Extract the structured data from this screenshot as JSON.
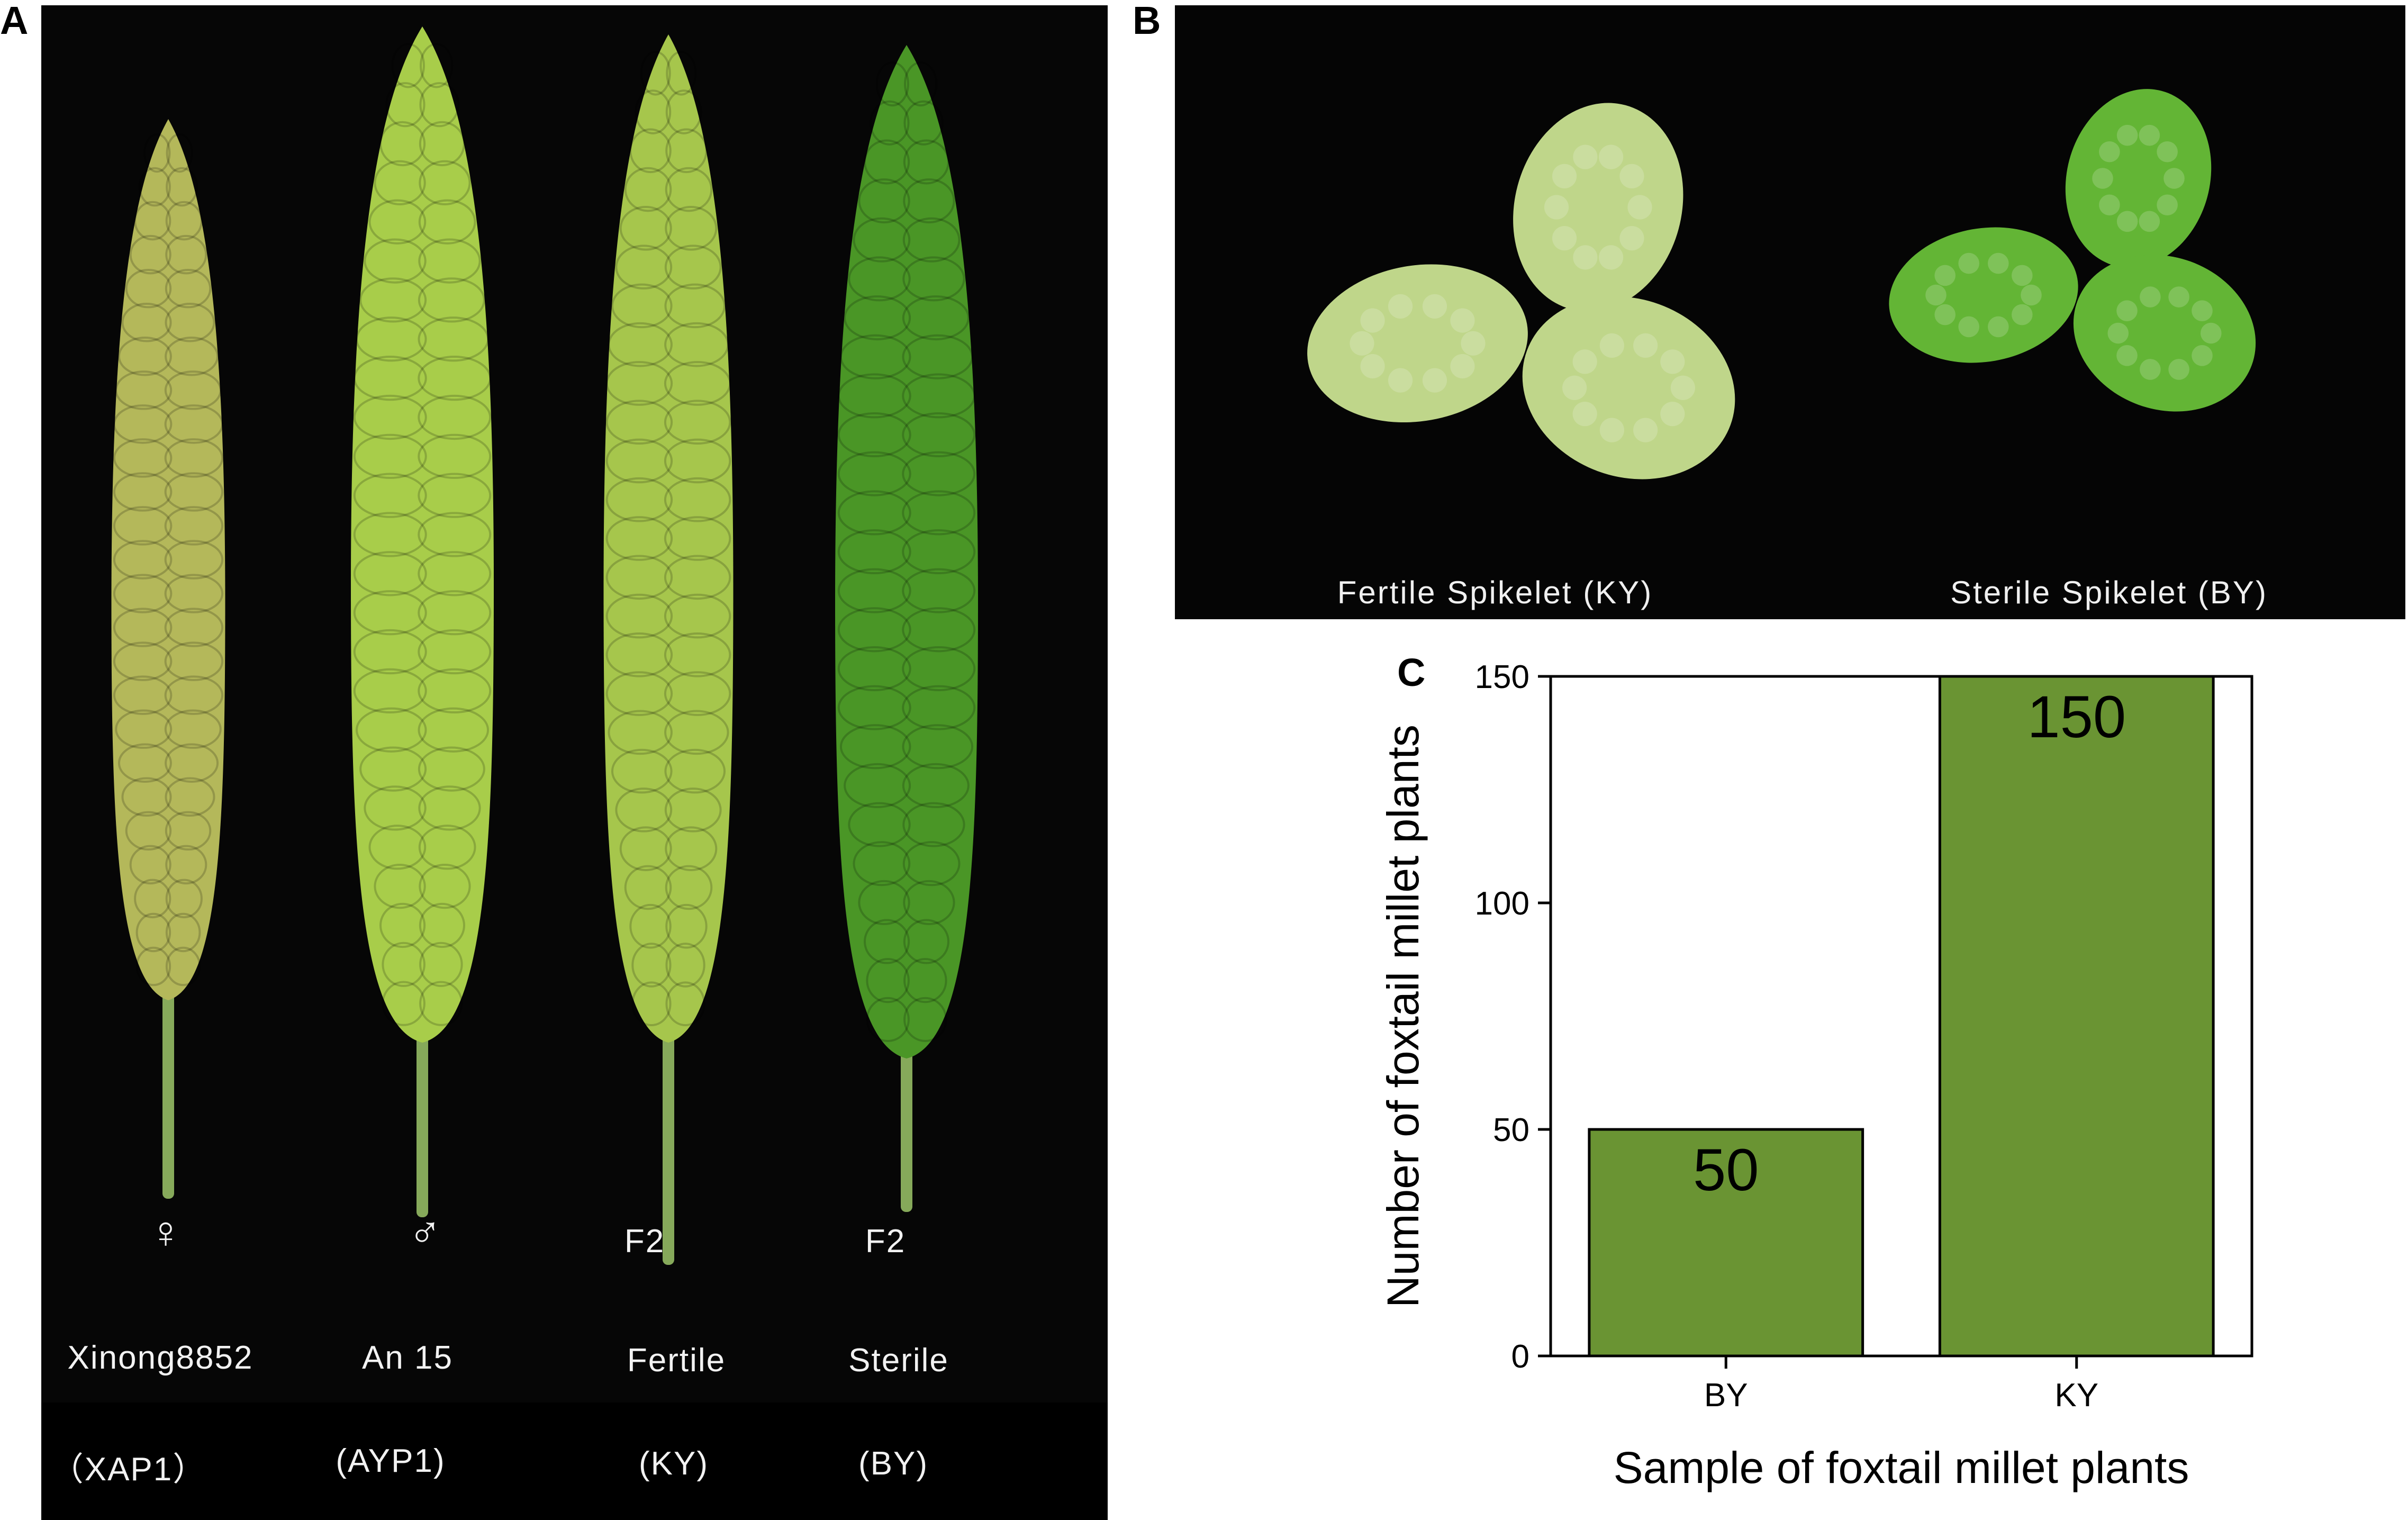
{
  "panel_labels": {
    "a": "A",
    "b": "B",
    "c": "C"
  },
  "panel_a": {
    "specimens": [
      {
        "symbol": "♀",
        "name": "Xinong8852",
        "code": "（XAP1）",
        "color": "#b4b85a"
      },
      {
        "symbol": "♂",
        "name": "An 15",
        "code": "(AYP1)",
        "color": "#a8cd4a"
      },
      {
        "symbol": "F2",
        "name": "Fertile",
        "code": "(KY)",
        "color": "#a6c64c"
      },
      {
        "symbol": "F2",
        "name": "Sterile",
        "code": "(BY)",
        "color": "#4a9626"
      }
    ]
  },
  "panel_b": {
    "captions": [
      "Fertile Spikelet (KY)",
      "Sterile Spikelet (BY)"
    ],
    "fertile_color": "#bfd68a",
    "sterile_color": "#63b535"
  },
  "chart_data": {
    "type": "bar",
    "categories": [
      "BY",
      "KY"
    ],
    "values": [
      50,
      150
    ],
    "data_labels": [
      "50",
      "150"
    ],
    "xlabel": "Sample of foxtail millet plants",
    "ylabel": "Number of foxtail millet plants",
    "ylim": [
      0,
      150
    ],
    "yticks": [
      0,
      50,
      100,
      150
    ],
    "bar_color": "#6a9433",
    "grid": false
  }
}
